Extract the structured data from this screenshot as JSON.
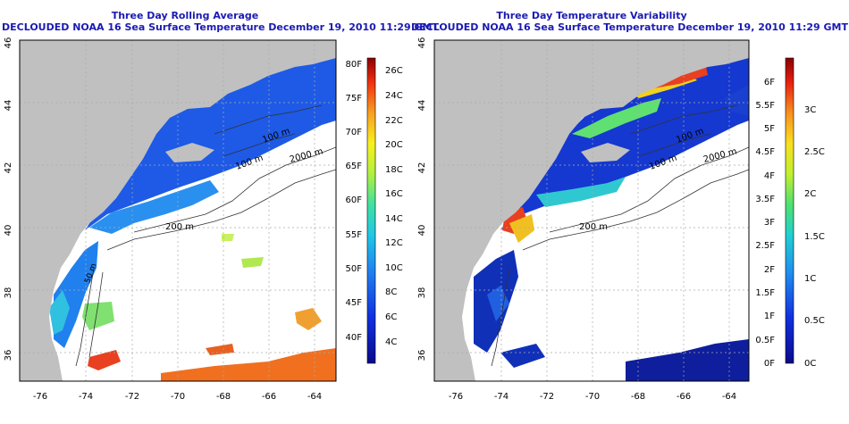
{
  "panels": [
    {
      "title": "Three Day Rolling Average",
      "subtitle": "DECLOUDED NOAA 16 Sea Surface Temperature December 19, 2010 11:29 GMT",
      "colorbar": {
        "left_labels": [
          "80F",
          "75F",
          "70F",
          "65F",
          "60F",
          "55F",
          "50F",
          "45F",
          "40F"
        ],
        "right_labels": [
          "26C",
          "24C",
          "22C",
          "20C",
          "18C",
          "16C",
          "14C",
          "12C",
          "10C",
          "8C",
          "6C",
          "4C"
        ]
      }
    },
    {
      "title": "Three Day Temperature Variability",
      "subtitle": "DECLOUDED NOAA 16 Sea Surface Temperature December 19, 2010 11:29 GMT",
      "colorbar": {
        "left_labels": [
          "6F",
          "5.5F",
          "5F",
          "4.5F",
          "4F",
          "3.5F",
          "3F",
          "2.5F",
          "2F",
          "1.5F",
          "1F",
          "0.5F",
          "0F"
        ],
        "right_labels": [
          "3C",
          "2.5C",
          "2C",
          "1.5C",
          "1C",
          "0.5C",
          "0C"
        ]
      }
    }
  ],
  "map": {
    "lon_ticks": [
      "-76",
      "-74",
      "-72",
      "-70",
      "-68",
      "-66",
      "-64"
    ],
    "lat_ticks": [
      "46",
      "44",
      "42",
      "40",
      "38",
      "36"
    ],
    "isobath_labels": [
      "100 m",
      "100 m",
      "2000 m",
      "200 m",
      "50 m"
    ],
    "colors": {
      "land": "#c0c0c0",
      "ocean": "#ffffff",
      "title": "#1a1ab4",
      "grid": "#aaaaaa"
    }
  }
}
